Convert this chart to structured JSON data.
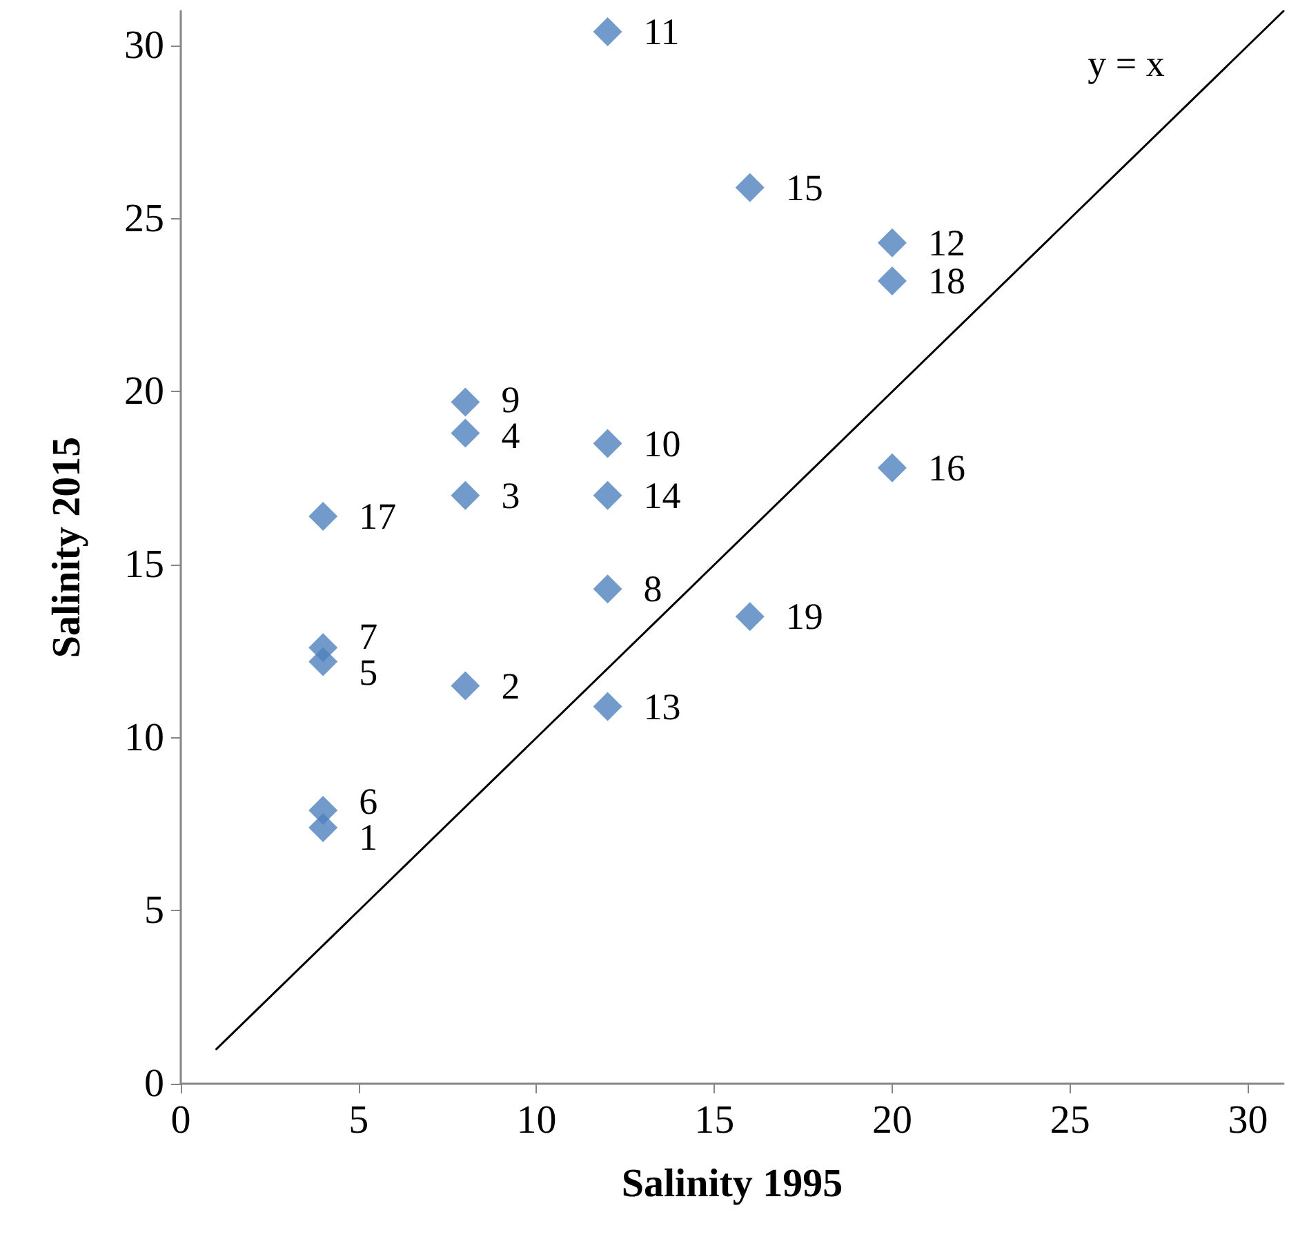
{
  "chart_data": {
    "type": "scatter",
    "xlabel": "Salinity 1995",
    "ylabel": "Salinity 2015",
    "xlim": [
      0,
      31
    ],
    "xticks": [
      0,
      5,
      10,
      15,
      20,
      25,
      30
    ],
    "ylim": [
      0,
      31
    ],
    "yticks": [
      0,
      5,
      10,
      15,
      20,
      25,
      30
    ],
    "grid": false,
    "marker": "diamond",
    "series": [
      {
        "color": "#4f81bd",
        "x": [
          4,
          8,
          8,
          8,
          4,
          4,
          4,
          12,
          8,
          12,
          12,
          20,
          12,
          12,
          16,
          20,
          4,
          20,
          16
        ],
        "values": [
          7.4,
          11.5,
          17.0,
          18.8,
          12.2,
          7.9,
          12.6,
          14.3,
          19.7,
          18.5,
          30.4,
          24.3,
          10.9,
          17.0,
          25.9,
          17.8,
          16.4,
          23.2,
          13.5
        ]
      },
      {
        "type": "line",
        "color": "#000000",
        "marker": "none",
        "x": [
          1,
          31
        ],
        "values": [
          1,
          31
        ]
      }
    ],
    "annotations": [
      "y = x",
      {
        "text": "1",
        "x": 4,
        "y": 7.4
      },
      {
        "text": "2",
        "x": 8,
        "y": 11.5
      },
      {
        "text": "3",
        "x": 8,
        "y": 17.0
      },
      {
        "text": "4",
        "x": 8,
        "y": 18.8
      },
      {
        "text": "5",
        "x": 4,
        "y": 12.2
      },
      {
        "text": "6",
        "x": 4,
        "y": 7.9
      },
      {
        "text": "7",
        "x": 4,
        "y": 12.6
      },
      {
        "text": "8",
        "x": 12,
        "y": 14.3
      },
      {
        "text": "9",
        "x": 8,
        "y": 19.7
      },
      {
        "text": "10",
        "x": 12,
        "y": 18.5
      },
      {
        "text": "11",
        "x": 12,
        "y": 30.4
      },
      {
        "text": "12",
        "x": 20,
        "y": 24.3
      },
      {
        "text": "13",
        "x": 12,
        "y": 10.9
      },
      {
        "text": "14",
        "x": 12,
        "y": 17.0
      },
      {
        "text": "15",
        "x": 16,
        "y": 25.9
      },
      {
        "text": "16",
        "x": 20,
        "y": 17.8
      },
      {
        "text": "17",
        "x": 4,
        "y": 16.4
      },
      {
        "text": "18",
        "x": 20,
        "y": 23.2
      },
      {
        "text": "19",
        "x": 16,
        "y": 13.5
      }
    ]
  }
}
